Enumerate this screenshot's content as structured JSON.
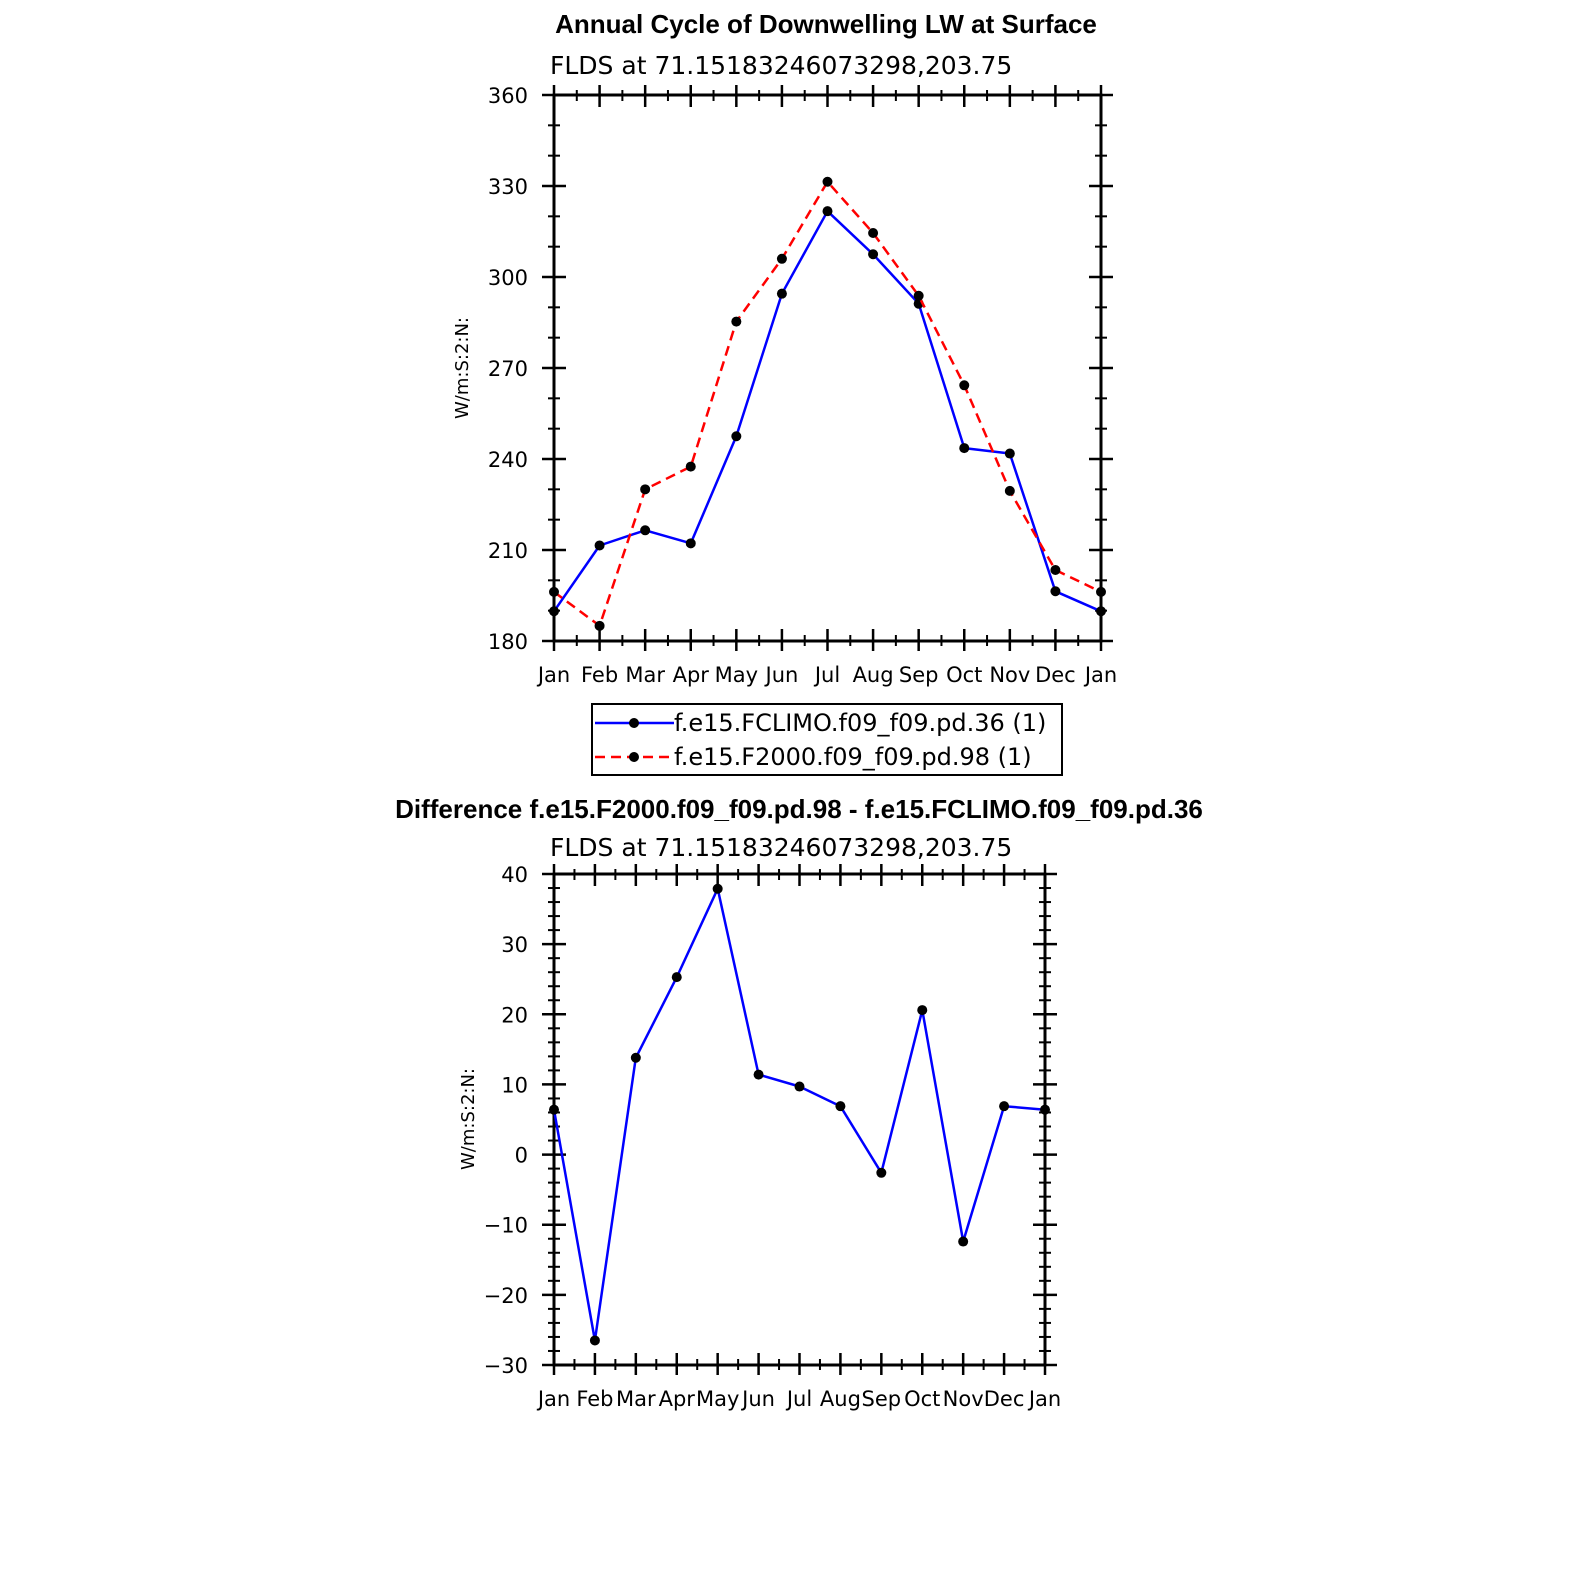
{
  "chart_data": [
    {
      "type": "line",
      "title": "Annual Cycle of Downwelling LW at Surface",
      "subtitle": "FLDS at 71.15183246073298,203.75",
      "ylabel": "W/m:S:2:N:",
      "xlabel": "",
      "categories": [
        "Jan",
        "Feb",
        "Mar",
        "Apr",
        "May",
        "Jun",
        "Jul",
        "Aug",
        "Sep",
        "Oct",
        "Nov",
        "Dec",
        "Jan"
      ],
      "ylim": [
        180,
        360
      ],
      "yticks": [
        180,
        210,
        240,
        270,
        300,
        330,
        360
      ],
      "grid": false,
      "legend_position": "bottom",
      "series": [
        {
          "name": "f.e15.FCLIMO.f09_f09.pd.36 (1)",
          "color": "#0000ff",
          "dash": "solid",
          "values": [
            189.8,
            211.5,
            216.5,
            212.2,
            247.5,
            294.5,
            321.7,
            307.5,
            291.2,
            243.6,
            241.8,
            196.4,
            189.8
          ]
        },
        {
          "name": "f.e15.F2000.f09_f09.pd.98 (1)",
          "color": "#ff0000",
          "dash": "dashed",
          "values": [
            196.2,
            185.0,
            230.0,
            237.5,
            285.3,
            306.0,
            331.4,
            314.5,
            293.8,
            264.3,
            229.5,
            203.4,
            196.2
          ]
        }
      ]
    },
    {
      "type": "line",
      "title": "Difference f.e15.F2000.f09_f09.pd.98 - f.e15.FCLIMO.f09_f09.pd.36",
      "subtitle": "FLDS at 71.15183246073298,203.75",
      "ylabel": "W/m:S:2:N:",
      "xlabel": "",
      "categories": [
        "Jan",
        "Feb",
        "Mar",
        "Apr",
        "May",
        "Jun",
        "Jul",
        "Aug",
        "Sep",
        "Oct",
        "Nov",
        "Dec",
        "Jan"
      ],
      "ylim": [
        -30,
        40
      ],
      "yticks": [
        -30,
        -20,
        -10,
        0,
        10,
        20,
        30,
        40
      ],
      "ytick_labels": [
        "−30",
        "−20",
        "−10",
        "0",
        "10",
        "20",
        "30",
        "40"
      ],
      "grid": false,
      "series": [
        {
          "color": "#0000ff",
          "dash": "solid",
          "values": [
            6.4,
            -26.5,
            13.8,
            25.3,
            37.9,
            11.4,
            9.7,
            6.9,
            -2.6,
            20.6,
            -12.4,
            6.9,
            6.4
          ]
        }
      ]
    }
  ]
}
